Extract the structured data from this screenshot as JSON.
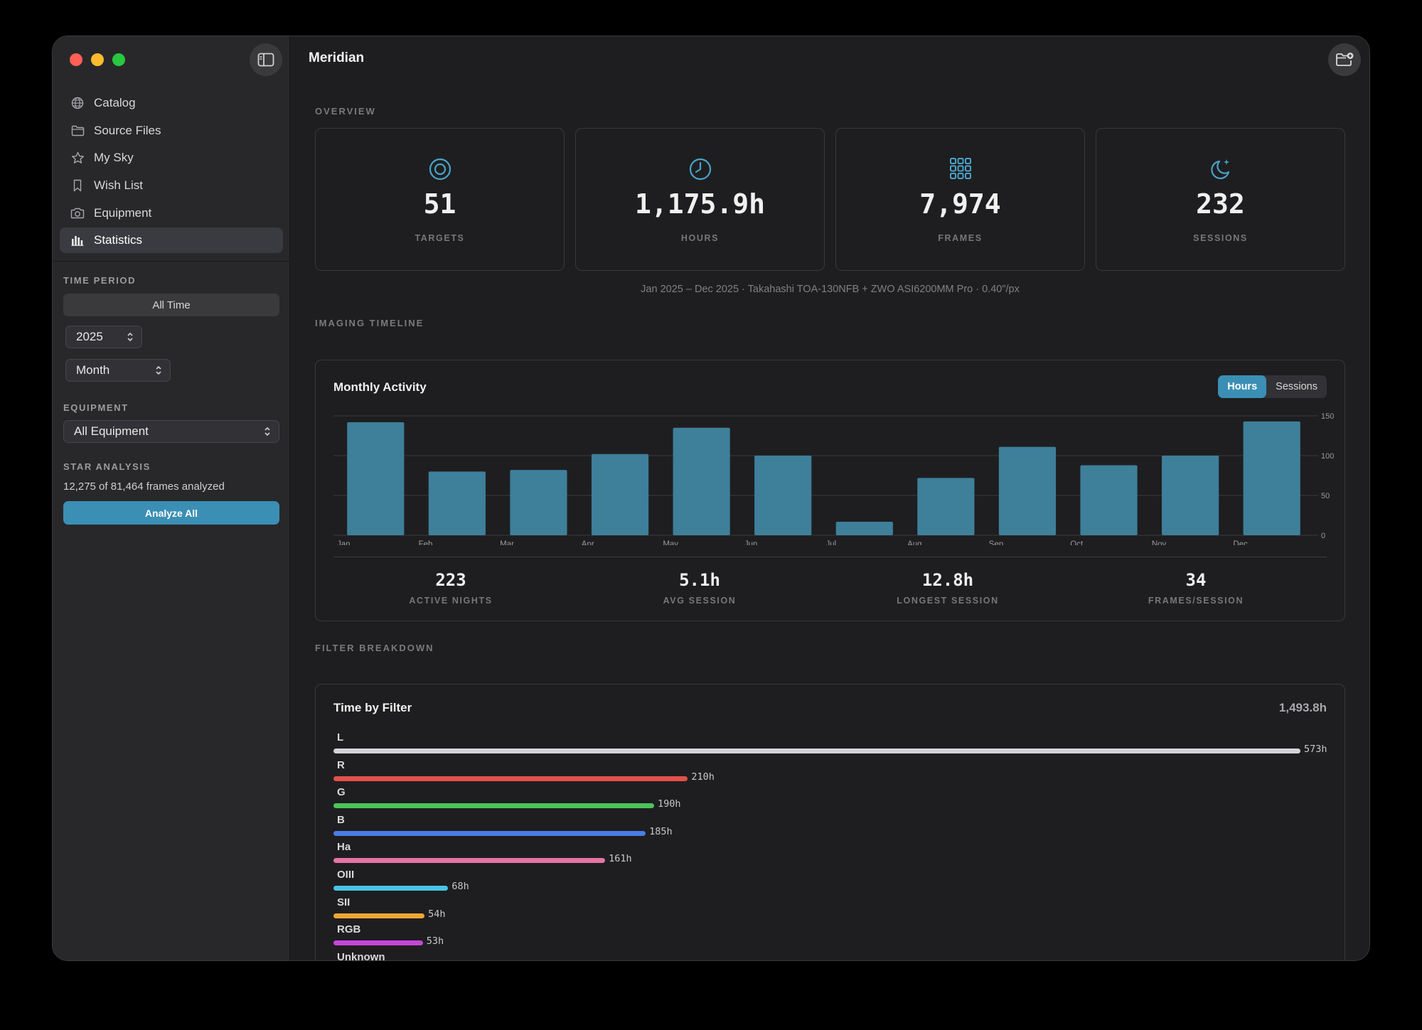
{
  "app": {
    "title": "Meridian"
  },
  "sidebar": {
    "items": [
      {
        "label": "Catalog",
        "icon": "globe-icon"
      },
      {
        "label": "Source Files",
        "icon": "folder-icon"
      },
      {
        "label": "My Sky",
        "icon": "star-icon"
      },
      {
        "label": "Wish List",
        "icon": "bookmark-icon"
      },
      {
        "label": "Equipment",
        "icon": "camera-icon"
      },
      {
        "label": "Statistics",
        "icon": "bar-chart-icon",
        "active": true
      }
    ],
    "time_period": {
      "label": "TIME PERIOD",
      "all_time": "All Time",
      "year": "2025",
      "granularity": "Month"
    },
    "equipment": {
      "label": "EQUIPMENT",
      "value": "All Equipment"
    },
    "star_analysis": {
      "label": "STAR ANALYSIS",
      "progress": "12,275 of 81,464 frames analyzed",
      "button": "Analyze All"
    }
  },
  "overview": {
    "label": "OVERVIEW",
    "cards": [
      {
        "value": "51",
        "label": "TARGETS",
        "icon": "target-icon"
      },
      {
        "value": "1,175.9h",
        "label": "HOURS",
        "icon": "clock-icon"
      },
      {
        "value": "7,974",
        "label": "FRAMES",
        "icon": "grid-icon"
      },
      {
        "value": "232",
        "label": "SESSIONS",
        "icon": "moon-stars-icon"
      }
    ],
    "caption": "Jan 2025 – Dec 2025 · Takahashi TOA-130NFB + ZWO ASI6200MM Pro · 0.40\"/px"
  },
  "timeline": {
    "label": "IMAGING TIMELINE",
    "title": "Monthly Activity",
    "toggle": {
      "hours": "Hours",
      "sessions": "Sessions",
      "selected": "hours"
    },
    "stats": [
      {
        "value": "223",
        "label": "ACTIVE NIGHTS"
      },
      {
        "value": "5.1h",
        "label": "AVG SESSION"
      },
      {
        "value": "12.8h",
        "label": "LONGEST SESSION"
      },
      {
        "value": "34",
        "label": "FRAMES/SESSION"
      }
    ]
  },
  "chart_data": {
    "type": "bar",
    "title": "Monthly Activity",
    "categories": [
      "Jan",
      "Feb",
      "Mar",
      "Apr",
      "May",
      "Jun",
      "Jul",
      "Aug",
      "Sep",
      "Oct",
      "Nov",
      "Dec"
    ],
    "values": [
      142,
      80,
      82,
      102,
      135,
      100,
      17,
      72,
      111,
      88,
      100,
      143
    ],
    "ylim": [
      0,
      150
    ],
    "yticks": [
      0,
      50,
      100,
      150
    ],
    "grid": true,
    "bar_color": "#3e7f9a"
  },
  "filters": {
    "label": "FILTER BREAKDOWN",
    "title": "Time by Filter",
    "total": "1,493.8h",
    "max": 573,
    "items": [
      {
        "name": "L",
        "hours": 573,
        "label": "573h",
        "color": "#d4d4d8"
      },
      {
        "name": "R",
        "hours": 210,
        "label": "210h",
        "color": "#e2504a"
      },
      {
        "name": "G",
        "hours": 190,
        "label": "190h",
        "color": "#4cc35a"
      },
      {
        "name": "B",
        "hours": 185,
        "label": "185h",
        "color": "#4a7ce6"
      },
      {
        "name": "Ha",
        "hours": 161,
        "label": "161h",
        "color": "#e673a8"
      },
      {
        "name": "OIII",
        "hours": 68,
        "label": "68h",
        "color": "#48c4e3"
      },
      {
        "name": "SII",
        "hours": 54,
        "label": "54h",
        "color": "#f0a534"
      },
      {
        "name": "RGB",
        "hours": 53,
        "label": "53h",
        "color": "#c646d8"
      },
      {
        "name": "Unknown",
        "hours": null,
        "label": "",
        "color": "#888888"
      }
    ]
  }
}
